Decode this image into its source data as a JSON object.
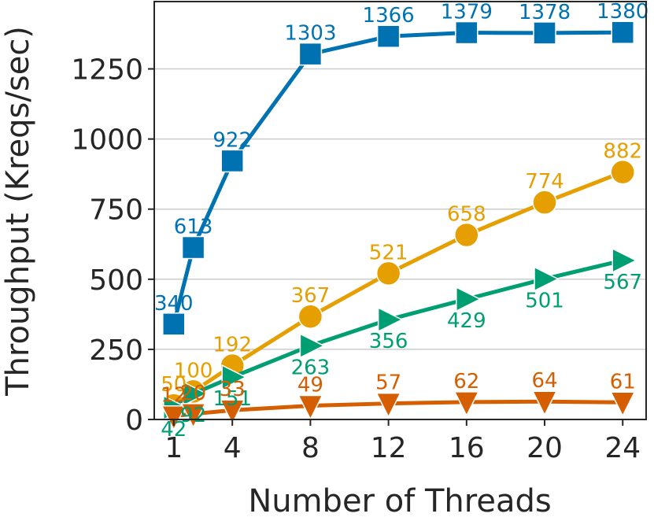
{
  "chart_data": {
    "type": "line",
    "xlabel": "Number of Threads",
    "ylabel": "Throughput (Kreqs/sec)",
    "xlim": [
      0.0,
      25.2
    ],
    "ylim": [
      0,
      1490
    ],
    "xticks": [
      1,
      4,
      8,
      12,
      16,
      20,
      24
    ],
    "yticks": [
      0,
      250,
      500,
      750,
      1000,
      1250
    ],
    "grid": true,
    "x": [
      1,
      2,
      4,
      8,
      12,
      16,
      20,
      24
    ],
    "series": [
      {
        "color": "#0072b2",
        "marker": "square",
        "values": [
          340,
          613,
          922,
          1303,
          1366,
          1379,
          1378,
          1380
        ],
        "labels": [
          "340",
          "613",
          "922",
          "1303",
          "1366",
          "1379",
          "1378",
          "1380"
        ],
        "label_pos": "above"
      },
      {
        "color": "#e69f00",
        "marker": "circle",
        "values": [
          50,
          100,
          192,
          367,
          521,
          658,
          774,
          882
        ],
        "labels": [
          "50",
          "100",
          "192",
          "367",
          "521",
          "658",
          "774",
          "882"
        ],
        "label_pos": "above"
      },
      {
        "color": "#009e73",
        "marker": "triangle-right",
        "values": [
          42,
          92,
          151,
          263,
          356,
          429,
          501,
          567
        ],
        "labels": [
          "42",
          "92",
          "151",
          "263",
          "356",
          "429",
          "501",
          "567"
        ],
        "label_pos": "below"
      },
      {
        "color": "#d55e00",
        "marker": "triangle-down",
        "values": [
          12,
          20,
          33,
          49,
          57,
          62,
          64,
          61
        ],
        "labels": [
          "12",
          "20",
          "33",
          "49",
          "57",
          "62",
          "64",
          "61"
        ],
        "label_pos": "above"
      }
    ]
  }
}
